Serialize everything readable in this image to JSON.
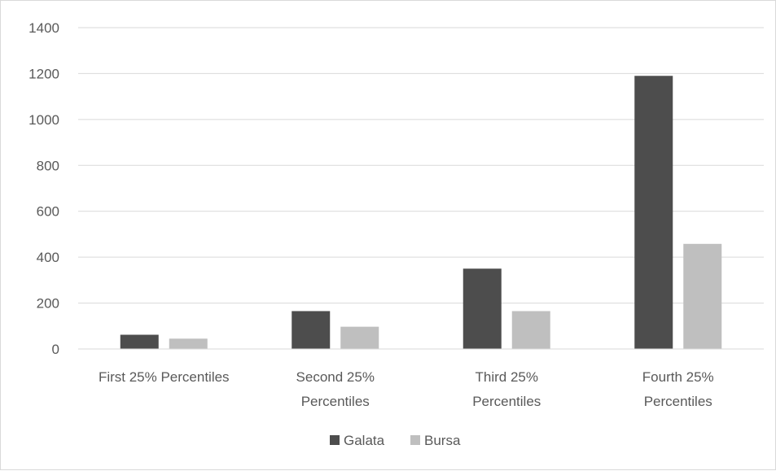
{
  "chart_data": {
    "type": "bar",
    "categories": [
      [
        "First 25% Percentiles"
      ],
      [
        "Second 25%",
        "Percentiles"
      ],
      [
        "Third 25%",
        "Percentiles"
      ],
      [
        "Fourth 25%",
        "Percentiles"
      ]
    ],
    "series": [
      {
        "name": "Galata",
        "color": "#4d4d4d",
        "values": [
          62,
          165,
          350,
          1190
        ]
      },
      {
        "name": "Bursa",
        "color": "#bfbfbf",
        "values": [
          45,
          97,
          165,
          458
        ]
      }
    ],
    "title": "",
    "xlabel": "",
    "ylabel": "",
    "ylim": [
      0,
      1400
    ],
    "yticks": [
      0,
      200,
      400,
      600,
      800,
      1000,
      1200,
      1400
    ],
    "grid": true,
    "legend_position": "bottom"
  }
}
